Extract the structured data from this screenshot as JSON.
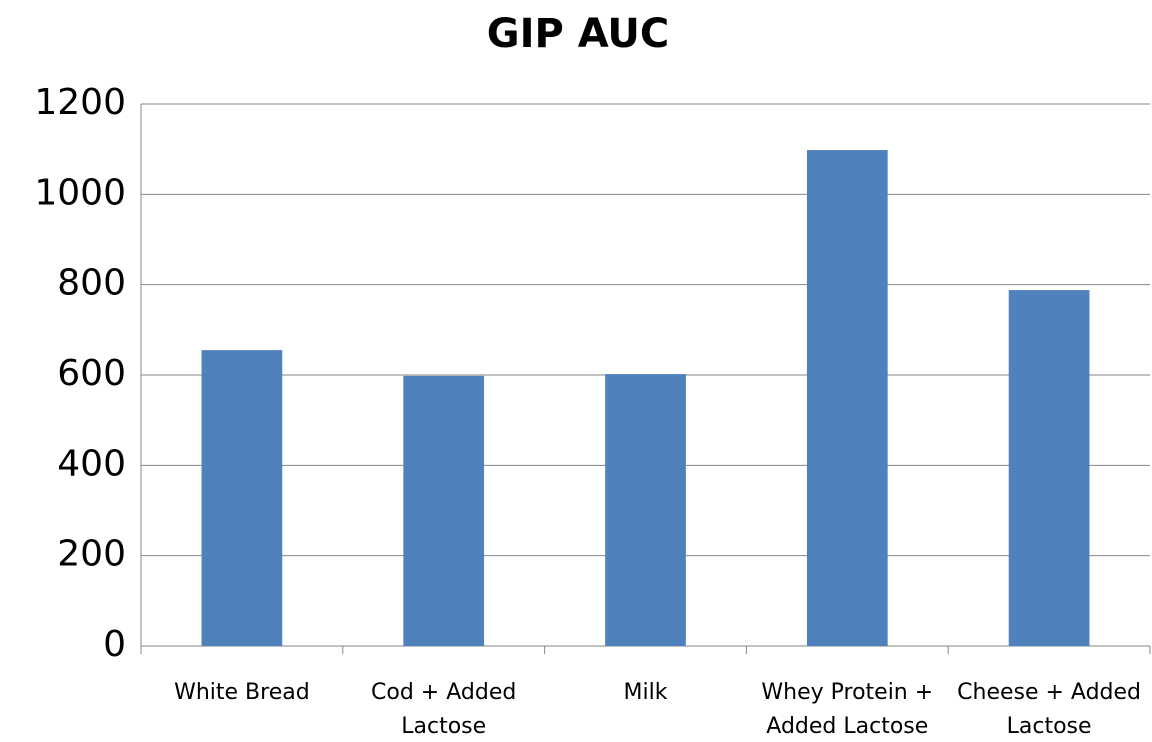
{
  "chart_data": {
    "type": "bar",
    "title": "GIP AUC",
    "categories": [
      "White Bread",
      "Cod + Added Lactose",
      "Milk",
      "Whey Protein + Added Lactose",
      "Cheese + Added Lactose"
    ],
    "values": [
      655,
      598,
      602,
      1098,
      788
    ],
    "color": "#4f81bd",
    "ylim": [
      0,
      1200
    ],
    "yticks": [
      0,
      200,
      400,
      600,
      800,
      1000,
      1200
    ],
    "grid": true
  }
}
